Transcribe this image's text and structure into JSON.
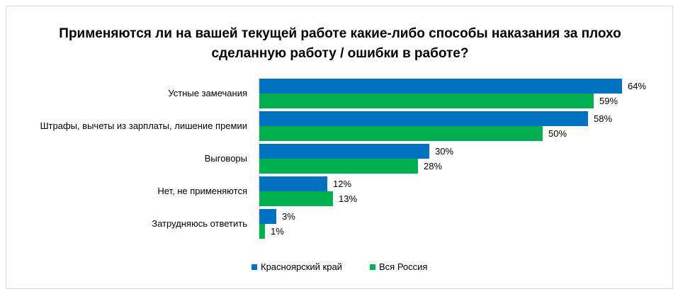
{
  "chart_data": {
    "type": "bar",
    "orientation": "horizontal",
    "title": "Применяются ли на вашей текущей работе какие-либо способы наказания за плохо сделанную работу / ошибки в работе?",
    "categories": [
      "Устные замечания",
      "Штрафы, вычеты из зарплаты, лишение премии",
      "Выговоры",
      "Нет, не применяются",
      "Затрудняюсь ответить"
    ],
    "series": [
      {
        "name": "Красноярский край",
        "color": "#0070C0",
        "values": [
          64,
          58,
          30,
          12,
          3
        ]
      },
      {
        "name": "Вся Россия",
        "color": "#00B050",
        "values": [
          59,
          50,
          28,
          13,
          1
        ]
      }
    ],
    "value_suffix": "%",
    "xlim": [
      0,
      70
    ],
    "grid": false,
    "legend": "bottom"
  }
}
